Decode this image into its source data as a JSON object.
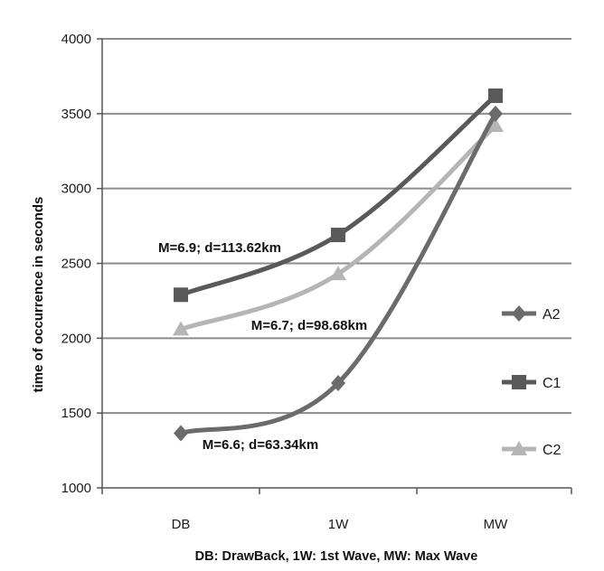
{
  "chart_data": {
    "type": "line",
    "categories": [
      "DB",
      "1W",
      "MW"
    ],
    "xlabel": "DB: DrawBack, 1W: 1st Wave, MW: Max Wave",
    "ylabel": "time  of occurrence in seconds",
    "ylim": [
      1000,
      4000
    ],
    "yticks": [
      1000,
      1500,
      2000,
      2500,
      3000,
      3500,
      4000
    ],
    "grid": "horizontal",
    "legend_position": "right",
    "series": [
      {
        "name": "A2",
        "values": [
          1365,
          1700,
          3500
        ],
        "color": "#6b6b6b",
        "marker": "diamond"
      },
      {
        "name": "C1",
        "values": [
          2290,
          2690,
          3620
        ],
        "color": "#595959",
        "marker": "square"
      },
      {
        "name": "C2",
        "values": [
          2060,
          2430,
          3420
        ],
        "color": "#b5b5b5",
        "marker": "triangle"
      }
    ],
    "annotations": [
      {
        "text": "M=6.9; d=113.62km",
        "series": "C1"
      },
      {
        "text": "M=6.7; d=98.68km",
        "series": "C2"
      },
      {
        "text": "M=6.6; d=63.34km",
        "series": "A2"
      }
    ]
  }
}
